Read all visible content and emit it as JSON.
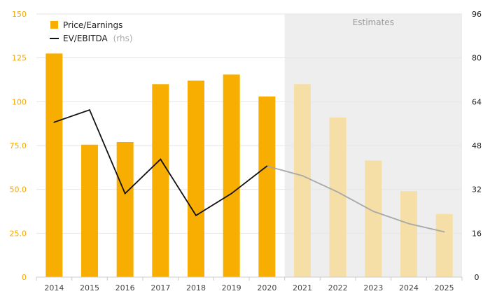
{
  "chart_data": {
    "type": "bar",
    "categories": [
      "2014",
      "2015",
      "2016",
      "2017",
      "2018",
      "2019",
      "2020",
      "2021",
      "2022",
      "2023",
      "2024",
      "2025"
    ],
    "estimate_start_index": 7,
    "estimates_label": "Estimates",
    "series": [
      {
        "name": "Price/Earnings",
        "axis": "left",
        "type": "bar",
        "values": [
          127.5,
          75.5,
          77.0,
          110.0,
          112.0,
          115.5,
          103.0,
          110.0,
          91.0,
          66.5,
          49.0,
          36.0
        ]
      },
      {
        "name": "EV/EBITDA",
        "axis": "right",
        "type": "line",
        "values": [
          56.5,
          61.0,
          30.5,
          43.0,
          22.5,
          30.5,
          40.5,
          37.0,
          31.0,
          24.0,
          19.5,
          16.5
        ]
      }
    ],
    "legend": {
      "position": "top-left",
      "items": [
        {
          "label": "Price/Earnings",
          "suffix": ""
        },
        {
          "label": "EV/EBITDA",
          "suffix": "(rhs)"
        }
      ]
    },
    "y_left": {
      "min": 0,
      "max": 150,
      "ticks": [
        "0",
        "25.0",
        "50.0",
        "75.0",
        "100",
        "125",
        "150"
      ]
    },
    "y_right": {
      "min": 0,
      "max": 96,
      "ticks": [
        "0",
        "16",
        "32",
        "48",
        "64",
        "80",
        "96"
      ]
    },
    "grid": true
  },
  "colors": {
    "bar": "#f7ae00",
    "bar_estimate": "#f6dfa6",
    "line": "#111111",
    "line_estimate": "#a8a8a8",
    "estimate_bg": "#eeeeee",
    "grid": "#e6e6e6",
    "left_axis_text": "#f5a800"
  }
}
